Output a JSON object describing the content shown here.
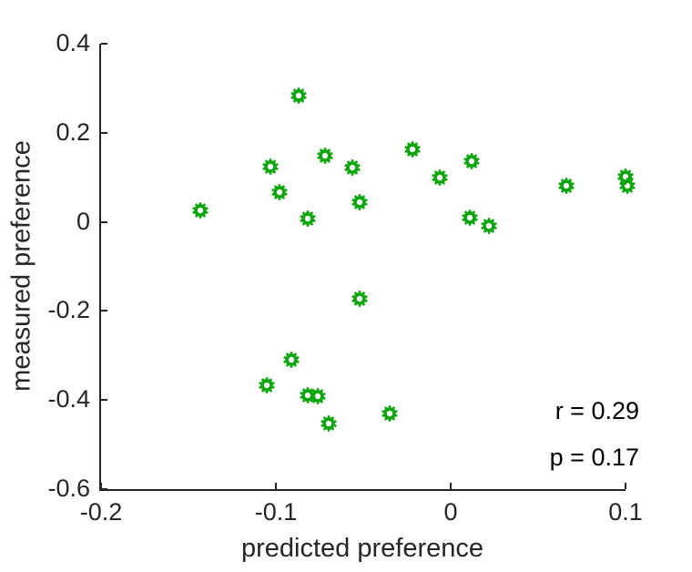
{
  "chart_data": {
    "type": "scatter",
    "title": "",
    "xlabel": "predicted preference",
    "ylabel": "measured preference",
    "xlim": [
      -0.2,
      0.1
    ],
    "ylim": [
      -0.6,
      0.4
    ],
    "x_ticks": [
      -0.2,
      -0.1,
      0,
      0.1
    ],
    "x_tick_labels": [
      "-0.2",
      "-0.1",
      "0",
      "0.1"
    ],
    "y_ticks": [
      -0.6,
      -0.4,
      -0.2,
      0,
      0.2,
      0.4
    ],
    "y_tick_labels": [
      "-0.6",
      "-0.4",
      "-0.2",
      "0",
      "0.2",
      "0.4"
    ],
    "grid": false,
    "legend": null,
    "marker": {
      "shape": "gear",
      "color": "#0ca60c",
      "size": 20
    },
    "points": [
      [
        -0.143,
        0.025
      ],
      [
        -0.103,
        0.123
      ],
      [
        -0.098,
        0.066
      ],
      [
        -0.087,
        0.283
      ],
      [
        -0.082,
        0.008
      ],
      [
        -0.072,
        0.148
      ],
      [
        -0.056,
        0.121
      ],
      [
        -0.052,
        0.045
      ],
      [
        -0.022,
        0.162
      ],
      [
        -0.006,
        0.1
      ],
      [
        0.011,
        0.01
      ],
      [
        0.012,
        0.137
      ],
      [
        0.022,
        -0.01
      ],
      [
        0.066,
        0.08
      ],
      [
        0.1,
        0.101
      ],
      [
        0.101,
        0.082
      ],
      [
        -0.052,
        -0.172
      ],
      [
        -0.091,
        -0.309
      ],
      [
        -0.105,
        -0.367
      ],
      [
        -0.082,
        -0.389
      ],
      [
        -0.076,
        -0.391
      ],
      [
        -0.07,
        -0.453
      ],
      [
        -0.035,
        -0.43
      ]
    ],
    "annotations": {
      "r_text": "r = 0.29",
      "p_text": "p = 0.17"
    }
  },
  "colors": {
    "background": "#ffffff",
    "axis": "#262626",
    "tick_text": "#262626",
    "annotation_text": "#000000",
    "marker_green": "#0ca60c"
  }
}
